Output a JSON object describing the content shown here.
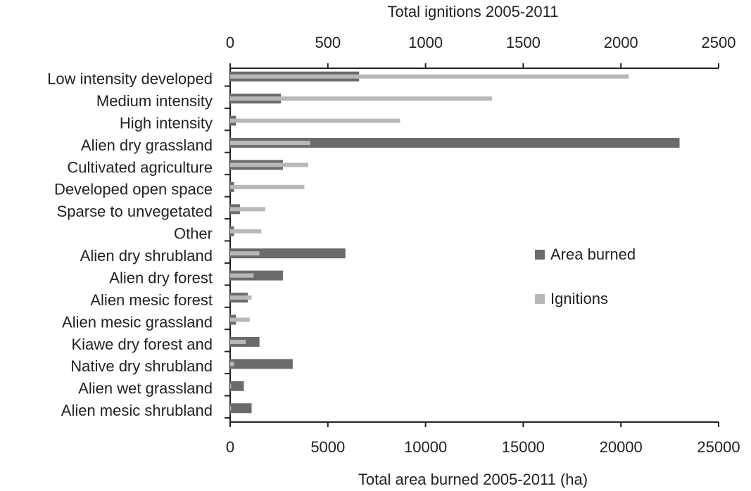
{
  "chart_data": {
    "type": "hbar",
    "x2label": "Total ignitions 2005-2011",
    "xlabel": "Total area burned 2005-2011 (ha)",
    "categories": [
      "Low intensity developed",
      "Medium intensity",
      "High intensity",
      "Alien dry grassland",
      "Cultivated agriculture",
      "Developed open space",
      "Sparse to unvegetated",
      "Other",
      "Alien dry shrubland",
      "Alien dry forest",
      "Alien mesic forest",
      "Alien mesic grassland",
      "Kiawe dry forest and",
      "Native dry shrubland",
      "Alien wet grassland",
      "Alien mesic shrubland"
    ],
    "series": [
      {
        "name": "Area burned",
        "color": "#6b6b6b",
        "axis": "x",
        "values": [
          6600,
          2600,
          300,
          23000,
          2700,
          200,
          500,
          200,
          5900,
          2700,
          900,
          300,
          1500,
          3200,
          700,
          1100
        ]
      },
      {
        "name": "Ignitions",
        "color": "#b8b8b8",
        "axis": "x2",
        "values": [
          2040,
          1340,
          870,
          410,
          400,
          380,
          180,
          160,
          150,
          120,
          110,
          100,
          80,
          20,
          5,
          5
        ]
      }
    ],
    "xlim": [
      0,
      25000
    ],
    "xticks": [
      0,
      5000,
      10000,
      15000,
      20000,
      25000
    ],
    "x2lim": [
      0,
      2500
    ],
    "x2ticks": [
      0,
      500,
      1000,
      1500,
      2000,
      2500
    ]
  }
}
